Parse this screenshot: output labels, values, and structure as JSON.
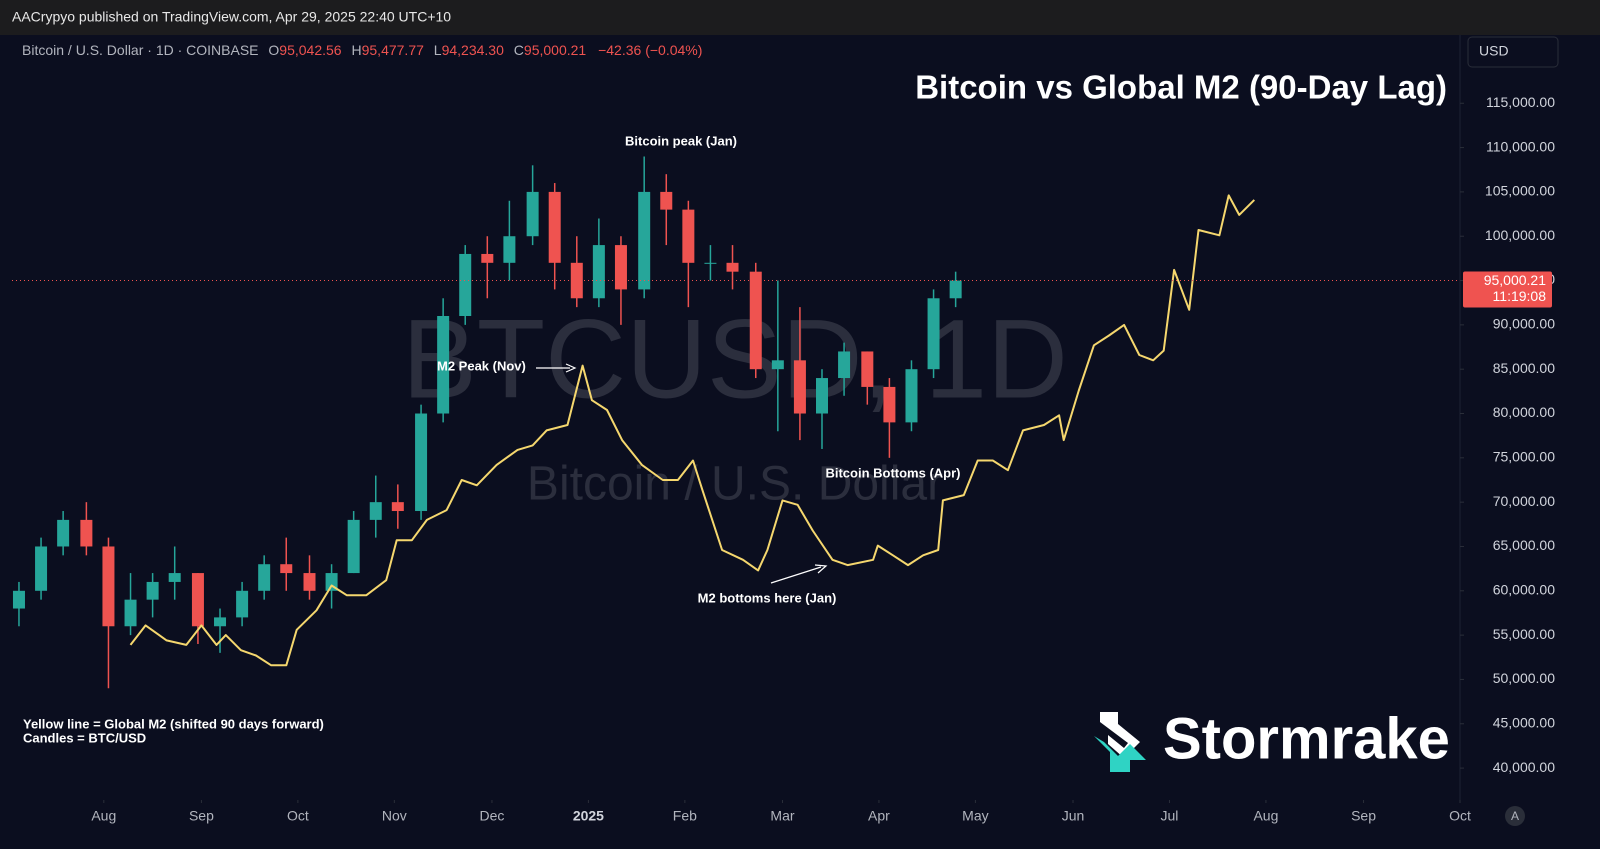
{
  "header": {
    "publisher": "AACrypyo published on TradingView.com, Apr 29, 2025 22:40 UTC+10"
  },
  "legend": {
    "symbol": "Bitcoin / U.S. Dollar · 1D · COINBASE",
    "ohlc": [
      {
        "key": "O",
        "value": "95,042.56"
      },
      {
        "key": "H",
        "value": "95,477.77"
      },
      {
        "key": "L",
        "value": "94,234.30"
      },
      {
        "key": "C",
        "value": "95,000.21"
      }
    ],
    "change": "−42.36 (−0.04%)"
  },
  "currency_button": "USD",
  "auto_button": "A",
  "watermark": {
    "ticker": "BTCUSD, 1D",
    "name": "Bitcoin / U.S. Dollar"
  },
  "brand": "Stormrake",
  "chart_data": {
    "type": "candlestick",
    "title": "Bitcoin vs Global M2 (90-Day Lag)",
    "up_color": "#26a69a",
    "down_color": "#ef5350",
    "candles": {
      "x": [
        2024.51,
        2024.529,
        2024.548,
        2024.568,
        2024.587,
        2024.606,
        2024.625,
        2024.644,
        2024.664,
        2024.683,
        2024.702,
        2024.721,
        2024.74,
        2024.76,
        2024.779,
        2024.798,
        2024.817,
        2024.836,
        2024.856,
        2024.875,
        2024.894,
        2024.913,
        2024.932,
        2024.952,
        2024.971,
        2024.99,
        2025.009,
        2025.028,
        2025.048,
        2025.067,
        2025.086,
        2025.105,
        2025.124,
        2025.144,
        2025.163,
        2025.182,
        2025.201,
        2025.22,
        2025.24,
        2025.259,
        2025.278,
        2025.297,
        2025.316
      ],
      "open": [
        58000,
        60000,
        65000,
        68000,
        65000,
        56000,
        59000,
        61000,
        62000,
        56000,
        57000,
        60000,
        63000,
        62000,
        60000,
        62000,
        68000,
        70000,
        69000,
        80000,
        91000,
        98000,
        97000,
        100000,
        105000,
        97000,
        93000,
        99000,
        94000,
        105000,
        103000,
        97000,
        97000,
        96000,
        85000,
        86000,
        80000,
        84000,
        87000,
        83000,
        79000,
        85000,
        93000
      ],
      "high": [
        61000,
        66000,
        69000,
        70000,
        66000,
        62000,
        62000,
        65000,
        62000,
        58000,
        61000,
        64000,
        66000,
        64000,
        63000,
        69000,
        73000,
        72000,
        81000,
        93000,
        99000,
        100000,
        104000,
        108000,
        106000,
        100000,
        102000,
        100000,
        109000,
        107000,
        104000,
        99000,
        99000,
        97000,
        95000,
        92000,
        85000,
        88000,
        87000,
        84000,
        86000,
        94000,
        96000
      ],
      "low": [
        56000,
        59000,
        64000,
        64000,
        49000,
        55000,
        57000,
        59000,
        54000,
        53000,
        56000,
        59000,
        60000,
        59000,
        58000,
        62000,
        66000,
        67000,
        68000,
        79000,
        90000,
        93000,
        95000,
        99000,
        94000,
        92000,
        92000,
        90000,
        93000,
        99000,
        92000,
        95000,
        94000,
        84000,
        78000,
        77000,
        76000,
        82000,
        81000,
        75000,
        78000,
        84000,
        92000
      ],
      "close": [
        60000,
        65000,
        68000,
        65000,
        56000,
        59000,
        61000,
        62000,
        56000,
        57000,
        60000,
        63000,
        62000,
        60000,
        62000,
        68000,
        70000,
        69000,
        80000,
        91000,
        98000,
        97000,
        100000,
        105000,
        97000,
        93000,
        99000,
        94000,
        105000,
        103000,
        97000,
        97000,
        96000,
        85000,
        86000,
        80000,
        84000,
        87000,
        83000,
        79000,
        85000,
        93000,
        95000
      ]
    },
    "m2": {
      "color": "#f5d76e",
      "x": [
        2024.606,
        2024.619,
        2024.637,
        2024.654,
        2024.667,
        2024.68,
        2024.688,
        2024.701,
        2024.714,
        2024.727,
        2024.74,
        2024.749,
        2024.766,
        2024.779,
        2024.792,
        2024.809,
        2024.826,
        2024.835,
        2024.848,
        2024.861,
        2024.878,
        2024.891,
        2024.904,
        2024.921,
        2024.939,
        2024.952,
        2024.964,
        2024.982,
        2024.995,
        2025.003,
        2025.016,
        2025.029,
        2025.046,
        2025.064,
        2025.077,
        2025.09,
        2025.098,
        2025.115,
        2025.133,
        2025.146,
        2025.154,
        2025.167,
        2025.18,
        2025.193,
        2025.21,
        2025.223,
        2025.245,
        2025.249,
        2025.262,
        2025.275,
        2025.288,
        2025.301,
        2025.305,
        2025.323,
        2025.335,
        2025.348,
        2025.361,
        2025.374,
        2025.392,
        2025.405,
        2025.409,
        2025.422,
        2025.435,
        2025.448,
        2025.461,
        2025.474,
        2025.486,
        2025.495,
        2025.504,
        2025.517,
        2025.525,
        2025.543,
        2025.551,
        2025.56,
        2025.573
      ],
      "values": [
        53900,
        56100,
        54400,
        53900,
        56100,
        53900,
        55000,
        53300,
        52700,
        51600,
        51600,
        55600,
        57800,
        60600,
        59500,
        59500,
        61200,
        65700,
        65700,
        68000,
        69100,
        72500,
        71900,
        74200,
        75900,
        76400,
        78100,
        78700,
        85400,
        81500,
        80400,
        77000,
        74200,
        72500,
        72500,
        74700,
        71400,
        64600,
        63500,
        62300,
        64600,
        70200,
        69700,
        66800,
        63500,
        62900,
        63500,
        65100,
        64000,
        62900,
        64000,
        64600,
        70200,
        70800,
        74700,
        74700,
        73600,
        78100,
        78700,
        79800,
        77000,
        82600,
        87700,
        88800,
        90000,
        86600,
        86000,
        87100,
        96200,
        91700,
        100700,
        100100,
        104600,
        102400,
        104100
      ]
    },
    "last_price": {
      "value": 95000.21,
      "label": "95,000.21",
      "countdown": "11:19:08"
    },
    "xlim": [
      2024.504,
      2025.75
    ],
    "xticks": [
      {
        "value": 2024.583,
        "label": "Aug"
      },
      {
        "value": 2024.667,
        "label": "Sep"
      },
      {
        "value": 2024.75,
        "label": "Oct"
      },
      {
        "value": 2024.833,
        "label": "Nov"
      },
      {
        "value": 2024.917,
        "label": "Dec"
      },
      2025,
      {
        "value": 2025.083,
        "label": "Feb"
      },
      {
        "value": 2025.167,
        "label": "Mar"
      },
      {
        "value": 2025.25,
        "label": "Apr"
      },
      {
        "value": 2025.333,
        "label": "May"
      },
      {
        "value": 2025.417,
        "label": "Jun"
      },
      {
        "value": 2025.5,
        "label": "Jul"
      },
      {
        "value": 2025.583,
        "label": "Aug"
      },
      {
        "value": 2025.667,
        "label": "Sep"
      },
      {
        "value": 2025.75,
        "label": "Oct"
      }
    ],
    "ylim": [
      36400,
      122700
    ],
    "yticks": [
      {
        "value": 40000,
        "label": "40,000.00"
      },
      {
        "value": 45000,
        "label": "45,000.00"
      },
      {
        "value": 50000,
        "label": "50,000.00"
      },
      {
        "value": 55000,
        "label": "55,000.00"
      },
      {
        "value": 60000,
        "label": "60,000.00"
      },
      {
        "value": 65000,
        "label": "65,000.00"
      },
      {
        "value": 70000,
        "label": "70,000.00"
      },
      {
        "value": 75000,
        "label": "75,000.00"
      },
      {
        "value": 80000,
        "label": "80,000.00"
      },
      {
        "value": 85000,
        "label": "85,000.00"
      },
      {
        "value": 90000,
        "label": "90,000.00"
      },
      {
        "value": 95000,
        "label": "95,000.00"
      },
      {
        "value": 100000,
        "label": "100,000.00"
      },
      {
        "value": 105000,
        "label": "105,000.00"
      },
      {
        "value": 110000,
        "label": "110,000.00"
      },
      {
        "value": 115000,
        "label": "115,000.00"
      }
    ],
    "grid": false,
    "annotations": {
      "btc_peak": "Bitcoin peak (Jan)",
      "m2_peak": "M2 Peak (Nov)",
      "btc_bottoms": "Bitcoin Bottoms (Apr)",
      "m2_bottoms": "M2 bottoms here (Jan)"
    },
    "notes": [
      "Yellow line = Global M2 (shifted 90 days forward)",
      "Candles = BTC/USD"
    ]
  }
}
